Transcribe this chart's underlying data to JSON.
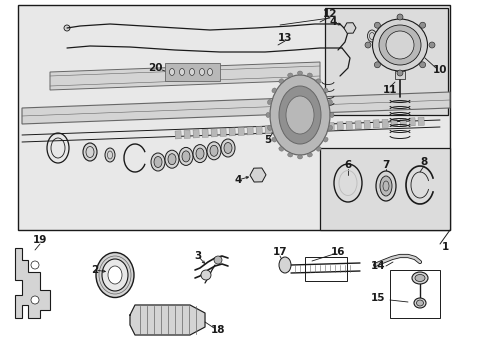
{
  "bg_color": "#ffffff",
  "diagram_bg": "#e8e8e8",
  "line_color": "#1a1a1a",
  "mid_gray": "#666666",
  "light_gray": "#bbbbbb",
  "fill_light": "#d4d4d4",
  "fill_mid": "#b8b8b8",
  "fill_dark": "#909090",
  "fig_width": 4.89,
  "fig_height": 3.6,
  "dpi": 100
}
